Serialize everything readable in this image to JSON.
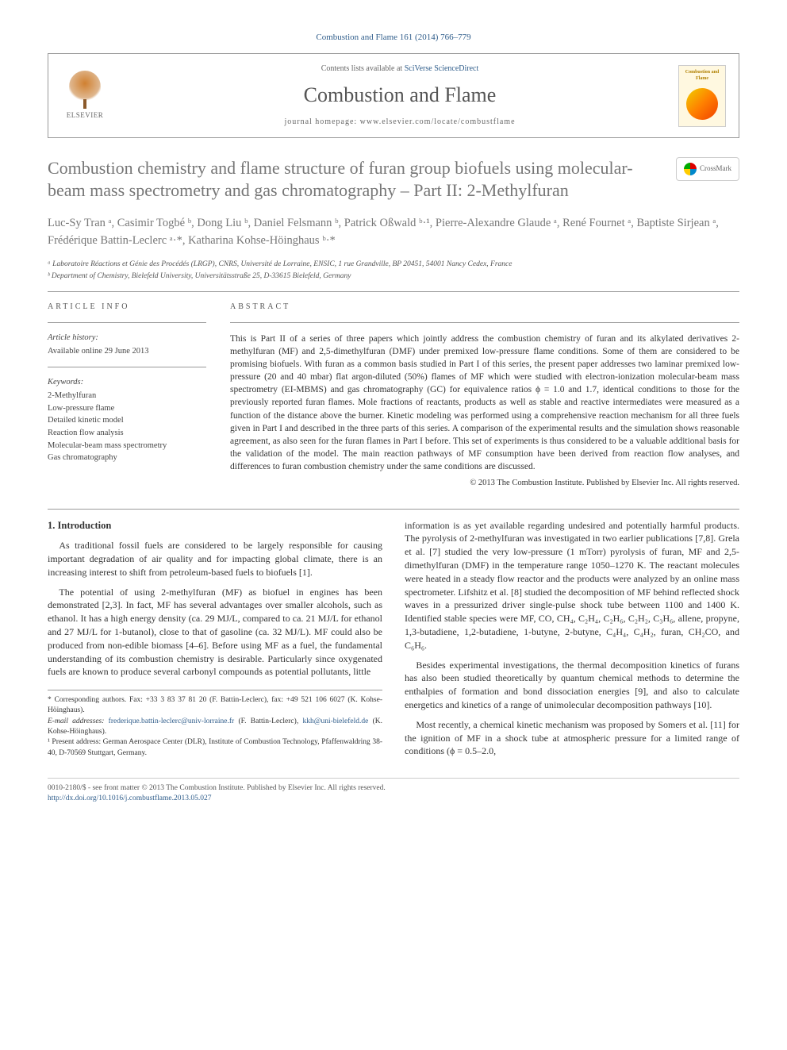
{
  "citation": "Combustion and Flame 161 (2014) 766–779",
  "header": {
    "contents_prefix": "Contents lists available at ",
    "contents_link": "SciVerse ScienceDirect",
    "journal_name": "Combustion and Flame",
    "homepage_prefix": "journal homepage: ",
    "homepage_url": "www.elsevier.com/locate/combustflame",
    "elsevier_label": "ELSEVIER",
    "cover_title": "Combustion and Flame"
  },
  "crossmark_label": "CrossMark",
  "title": "Combustion chemistry and flame structure of furan group biofuels using molecular-beam mass spectrometry and gas chromatography – Part II: 2-Methylfuran",
  "authors_html": "Luc-Sy Tran ᵃ, Casimir Togbé ᵇ, Dong Liu ᵇ, Daniel Felsmann ᵇ, Patrick Oßwald ᵇ·¹, Pierre-Alexandre Glaude ᵃ, René Fournet ᵃ, Baptiste Sirjean ᵃ, Frédérique Battin-Leclerc ᵃ·*, Katharina Kohse-Höinghaus ᵇ·*",
  "affiliations": [
    "ᵃ Laboratoire Réactions et Génie des Procédés (LRGP), CNRS, Université de Lorraine, ENSIC, 1 rue Grandville, BP 20451, 54001 Nancy Cedex, France",
    "ᵇ Department of Chemistry, Bielefeld University, Universitätsstraße 25, D-33615 Bielefeld, Germany"
  ],
  "info": {
    "heading": "ARTICLE INFO",
    "history_label": "Article history:",
    "history_line": "Available online 29 June 2013",
    "keywords_label": "Keywords:",
    "keywords": [
      "2-Methylfuran",
      "Low-pressure flame",
      "Detailed kinetic model",
      "Reaction flow analysis",
      "Molecular-beam mass spectrometry",
      "Gas chromatography"
    ]
  },
  "abstract": {
    "heading": "ABSTRACT",
    "body": "This is Part II of a series of three papers which jointly address the combustion chemistry of furan and its alkylated derivatives 2-methylfuran (MF) and 2,5-dimethylfuran (DMF) under premixed low-pressure flame conditions. Some of them are considered to be promising biofuels. With furan as a common basis studied in Part I of this series, the present paper addresses two laminar premixed low-pressure (20 and 40 mbar) flat argon-diluted (50%) flames of MF which were studied with electron-ionization molecular-beam mass spectrometry (EI-MBMS) and gas chromatography (GC) for equivalence ratios ϕ = 1.0 and 1.7, identical conditions to those for the previously reported furan flames. Mole fractions of reactants, products as well as stable and reactive intermediates were measured as a function of the distance above the burner. Kinetic modeling was performed using a comprehensive reaction mechanism for all three fuels given in Part I and described in the three parts of this series. A comparison of the experimental results and the simulation shows reasonable agreement, as also seen for the furan flames in Part I before. This set of experiments is thus considered to be a valuable additional basis for the validation of the model. The main reaction pathways of MF consumption have been derived from reaction flow analyses, and differences to furan combustion chemistry under the same conditions are discussed.",
    "copyright": "© 2013 The Combustion Institute. Published by Elsevier Inc. All rights reserved."
  },
  "section1_heading": "1. Introduction",
  "paragraphs": [
    "As traditional fossil fuels are considered to be largely responsible for causing important degradation of air quality and for impacting global climate, there is an increasing interest to shift from petroleum-based fuels to biofuels [1].",
    "The potential of using 2-methylfuran (MF) as biofuel in engines has been demonstrated [2,3]. In fact, MF has several advantages over smaller alcohols, such as ethanol. It has a high energy density (ca. 29 MJ/L, compared to ca. 21 MJ/L for ethanol and 27 MJ/L for 1-butanol), close to that of gasoline (ca. 32 MJ/L). MF could also be produced from non-edible biomass [4–6]. Before using MF as a fuel, the fundamental understanding of its combustion chemistry is desirable. Particularly since oxygenated fuels are known to produce several carbonyl compounds as potential pollutants, little",
    "information is as yet available regarding undesired and potentially harmful products. The pyrolysis of 2-methylfuran was investigated in two earlier publications [7,8]. Grela et al. [7] studied the very low-pressure (1 mTorr) pyrolysis of furan, MF and 2,5-dimethylfuran (DMF) in the temperature range 1050–1270 K. The reactant molecules were heated in a steady flow reactor and the products were analyzed by an online mass spectrometer. Lifshitz et al. [8] studied the decomposition of MF behind reflected shock waves in a pressurized driver single-pulse shock tube between 1100 and 1400 K. Identified stable species were MF, CO, CH₄, C₂H₄, C₂H₆, C₂H₂, C₃H₆, allene, propyne, 1,3-butadiene, 1,2-butadiene, 1-butyne, 2-butyne, C₄H₄, C₄H₂, furan, CH₂CO, and C₆H₆.",
    "Besides experimental investigations, the thermal decomposition kinetics of furans has also been studied theoretically by quantum chemical methods to determine the enthalpies of formation and bond dissociation energies [9], and also to calculate energetics and kinetics of a range of unimolecular decomposition pathways [10].",
    "Most recently, a chemical kinetic mechanism was proposed by Somers et al. [11] for the ignition of MF in a shock tube at atmospheric pressure for a limited range of conditions (ϕ = 0.5–2.0,"
  ],
  "footnotes": {
    "corr": "* Corresponding authors. Fax: +33 3 83 37 81 20 (F. Battin-Leclerc), fax: +49 521 106 6027 (K. Kohse-Höinghaus).",
    "emails_label": "E-mail addresses: ",
    "email1": "frederique.battin-leclerc@univ-lorraine.fr",
    "email1_who": " (F. Battin-Leclerc), ",
    "email2": "kkh@uni-bielefeld.de",
    "email2_who": " (K. Kohse-Höinghaus).",
    "present": "¹ Present address: German Aerospace Center (DLR), Institute of Combustion Technology, Pfaffenwaldring 38-40, D-70569 Stuttgart, Germany."
  },
  "footer": {
    "line1": "0010-2180/$ - see front matter © 2013 The Combustion Institute. Published by Elsevier Inc. All rights reserved.",
    "doi_url": "http://dx.doi.org/10.1016/j.combustflame.2013.05.027"
  }
}
